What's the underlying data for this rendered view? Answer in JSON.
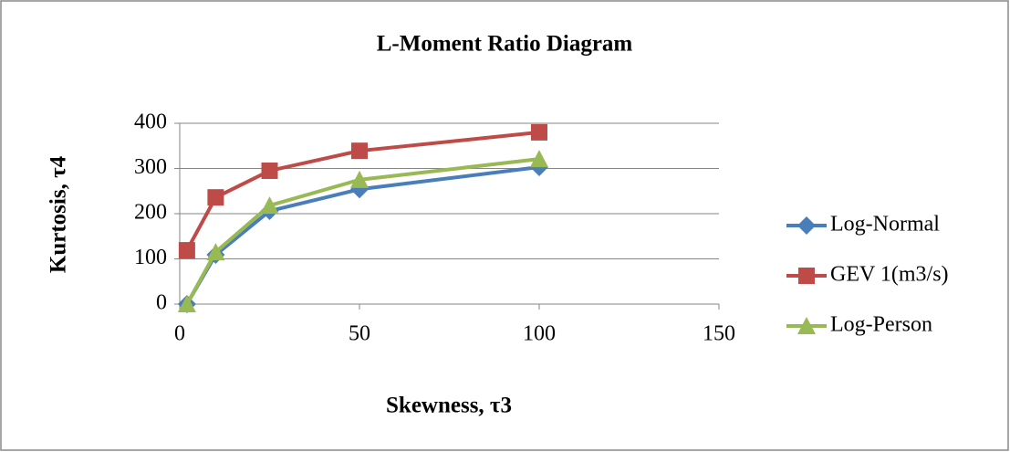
{
  "chart_data": {
    "type": "line",
    "title": "L-Moment Ratio Diagram",
    "x_label": "Skewness, τ3",
    "y_label": "Kurtosis, τ4",
    "x": [
      2,
      10,
      25,
      50,
      100
    ],
    "series": [
      {
        "name": "Log-Normal",
        "color": "#4a7ebb",
        "marker": "diamond",
        "values": [
          0,
          109,
          206,
          254,
          303
        ]
      },
      {
        "name": "GEV 1(m3/s)",
        "color": "#be4b48",
        "marker": "square",
        "values": [
          119,
          236,
          295,
          339,
          380
        ]
      },
      {
        "name": "Log-Person",
        "color": "#98b954",
        "marker": "triangle",
        "values": [
          0,
          115,
          218,
          275,
          321
        ]
      }
    ],
    "xlim": [
      0,
      150
    ],
    "xticks": [
      0,
      50,
      100,
      150
    ],
    "ylim": [
      0,
      400
    ],
    "yticks": [
      0,
      100,
      200,
      300,
      400
    ],
    "grid": true,
    "legend": "right"
  }
}
